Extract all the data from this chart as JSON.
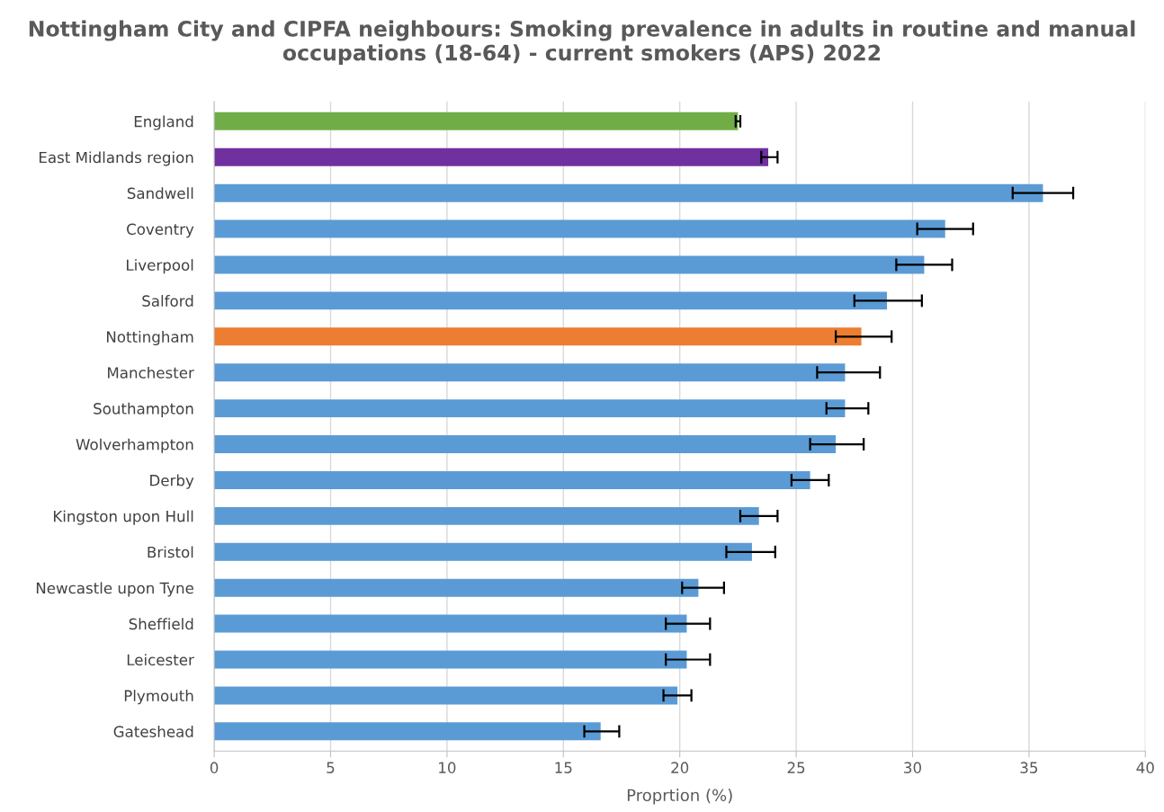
{
  "chart_data": {
    "type": "bar",
    "orientation": "horizontal",
    "title": "Nottingham City and CIPFA neighbours: Smoking prevalence in adults in routine and manual occupations (18-64) - current smokers (APS) 2022",
    "xlabel": "Proprtion (%)",
    "categories": [
      "England",
      "East Midlands region",
      "Sandwell",
      "Coventry",
      "Liverpool",
      "Salford",
      "Nottingham",
      "Manchester",
      "Southampton",
      "Wolverhampton",
      "Derby",
      "Kingston upon Hull",
      "Bristol",
      "Newcastle upon Tyne",
      "Sheffield",
      "Leicester",
      "Plymouth",
      "Gateshead"
    ],
    "values": [
      22.5,
      23.8,
      35.6,
      31.4,
      30.5,
      28.9,
      27.8,
      27.1,
      27.1,
      26.7,
      25.6,
      23.4,
      23.1,
      20.8,
      20.3,
      20.3,
      19.9,
      16.6
    ],
    "errors": [
      [
        22.4,
        22.6
      ],
      [
        23.5,
        24.2
      ],
      [
        34.3,
        36.9
      ],
      [
        30.2,
        32.6
      ],
      [
        29.3,
        31.7
      ],
      [
        27.5,
        30.4
      ],
      [
        26.7,
        29.1
      ],
      [
        25.9,
        28.6
      ],
      [
        26.3,
        28.1
      ],
      [
        25.6,
        27.9
      ],
      [
        24.8,
        26.4
      ],
      [
        22.6,
        24.2
      ],
      [
        22.0,
        24.1
      ],
      [
        20.1,
        21.9
      ],
      [
        19.4,
        21.3
      ],
      [
        19.4,
        21.3
      ],
      [
        19.3,
        20.5
      ],
      [
        15.9,
        17.4
      ]
    ],
    "colors": [
      "#70ad47",
      "#7030a0",
      "#5b9bd5",
      "#5b9bd5",
      "#5b9bd5",
      "#5b9bd5",
      "#ed7d31",
      "#5b9bd5",
      "#5b9bd5",
      "#5b9bd5",
      "#5b9bd5",
      "#5b9bd5",
      "#5b9bd5",
      "#5b9bd5",
      "#5b9bd5",
      "#5b9bd5",
      "#5b9bd5",
      "#5b9bd5"
    ],
    "xlim": [
      0,
      40
    ],
    "xticks": [
      0,
      5,
      10,
      15,
      20,
      25,
      30,
      35,
      40
    ],
    "grid": "x"
  }
}
